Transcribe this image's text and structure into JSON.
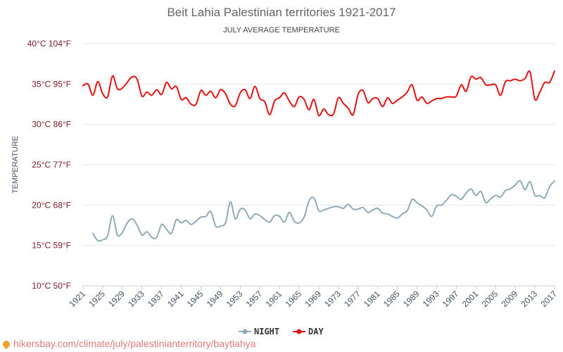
{
  "chart_data": {
    "type": "line",
    "title": "Beit Lahia Palestinian territories 1921-2017",
    "subtitle": "JULY AVERAGE TEMPERATURE",
    "ylabel": "TEMPERATURE",
    "ylim": [
      10,
      40
    ],
    "y_ticks": [
      {
        "value": 10,
        "label": "10°C 50°F"
      },
      {
        "value": 15,
        "label": "15°C 59°F"
      },
      {
        "value": 20,
        "label": "20°C 68°F"
      },
      {
        "value": 25,
        "label": "25°C 77°F"
      },
      {
        "value": 30,
        "label": "30°C 86°F"
      },
      {
        "value": 35,
        "label": "35°C 95°F"
      },
      {
        "value": 40,
        "label": "40°C 104°F"
      }
    ],
    "x_ticks": [
      "1921",
      "1925",
      "1929",
      "1933",
      "1937",
      "1941",
      "1945",
      "1949",
      "1953",
      "1957",
      "1961",
      "1965",
      "1969",
      "1973",
      "1977",
      "1981",
      "1985",
      "1989",
      "1993",
      "1997",
      "2001",
      "2005",
      "2009",
      "2013",
      "2017"
    ],
    "x": [
      1921,
      1922,
      1923,
      1924,
      1925,
      1926,
      1927,
      1928,
      1929,
      1930,
      1931,
      1932,
      1933,
      1934,
      1935,
      1936,
      1937,
      1938,
      1939,
      1940,
      1941,
      1942,
      1943,
      1944,
      1945,
      1946,
      1947,
      1948,
      1949,
      1950,
      1951,
      1952,
      1953,
      1954,
      1955,
      1956,
      1957,
      1958,
      1959,
      1960,
      1961,
      1962,
      1963,
      1964,
      1965,
      1966,
      1967,
      1968,
      1969,
      1970,
      1971,
      1972,
      1973,
      1974,
      1975,
      1976,
      1977,
      1978,
      1979,
      1980,
      1981,
      1982,
      1983,
      1984,
      1985,
      1986,
      1987,
      1988,
      1989,
      1990,
      1991,
      1992,
      1993,
      1994,
      1995,
      1996,
      1997,
      1998,
      1999,
      2000,
      2001,
      2002,
      2003,
      2004,
      2005,
      2006,
      2007,
      2008,
      2009,
      2010,
      2011,
      2012,
      2013,
      2014,
      2015,
      2016,
      2017
    ],
    "series": [
      {
        "name": "NIGHT",
        "color": "#90aab8",
        "values": [
          null,
          null,
          16.5,
          15.6,
          15.7,
          16.2,
          18.7,
          16.3,
          16.6,
          17.8,
          18.3,
          17.5,
          16.3,
          16.7,
          16.0,
          16.0,
          17.6,
          17.0,
          16.5,
          18.2,
          17.8,
          18.1,
          17.6,
          18.0,
          18.5,
          18.6,
          19.2,
          17.4,
          17.4,
          17.8,
          20.4,
          18.3,
          19.5,
          19.4,
          18.3,
          18.9,
          18.7,
          18.2,
          17.9,
          18.7,
          18.6,
          17.9,
          19.1,
          18.0,
          17.8,
          18.5,
          20.5,
          20.9,
          19.3,
          19.4,
          19.6,
          19.8,
          19.8,
          19.6,
          20.1,
          19.5,
          19.5,
          19.7,
          19.1,
          19.4,
          19.6,
          19.0,
          18.9,
          18.6,
          18.4,
          18.9,
          19.3,
          20.7,
          20.3,
          19.9,
          19.4,
          18.6,
          19.9,
          20.0,
          20.6,
          21.3,
          21.1,
          20.7,
          21.5,
          22.0,
          21.2,
          21.7,
          20.3,
          20.8,
          21.2,
          21.0,
          21.8,
          22.0,
          22.5,
          23.0,
          21.9,
          22.9,
          21.2,
          21.2,
          20.9,
          22.3,
          23.0
        ]
      },
      {
        "name": "DAY",
        "color": "#e81010",
        "values": [
          34.8,
          35.0,
          33.6,
          35.3,
          33.8,
          33.4,
          36.0,
          34.4,
          34.5,
          35.2,
          35.9,
          35.6,
          33.5,
          34.0,
          33.6,
          34.3,
          33.7,
          35.2,
          34.4,
          34.7,
          33.1,
          33.3,
          32.5,
          32.5,
          34.2,
          33.6,
          34.1,
          33.3,
          34.3,
          33.8,
          32.5,
          32.3,
          33.9,
          34.3,
          33.2,
          34.7,
          33.2,
          32.8,
          31.2,
          32.9,
          33.3,
          33.9,
          32.9,
          32.2,
          33.4,
          33.1,
          31.8,
          33.1,
          31.1,
          31.9,
          31.2,
          31.3,
          33.3,
          32.6,
          32.0,
          31.2,
          33.7,
          34.2,
          32.7,
          33.2,
          33.2,
          32.2,
          33.3,
          32.6,
          33.0,
          33.4,
          34.0,
          34.9,
          33.0,
          33.4,
          32.6,
          32.9,
          33.2,
          33.2,
          33.4,
          33.4,
          33.5,
          34.9,
          34.1,
          35.9,
          35.6,
          35.8,
          34.9,
          34.9,
          34.9,
          33.6,
          35.3,
          35.4,
          35.6,
          35.4,
          35.7,
          36.5,
          33.1,
          34.0,
          35.2,
          35.2,
          36.6
        ]
      }
    ],
    "legend": {
      "position": "bottom-center",
      "items": [
        "NIGHT",
        "DAY"
      ]
    }
  },
  "footer": {
    "source_url": "hikersbay.com/climate/july/palestinianterritory/baytlahya",
    "pin_icon": "location-pin-icon"
  }
}
